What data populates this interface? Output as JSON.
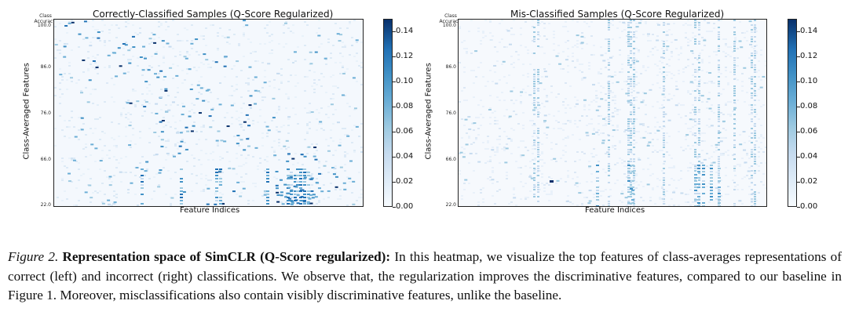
{
  "panels": [
    {
      "title": "Correctly-Classified Samples (Q-Score Regularized)",
      "ylabel": "Class-Averaged Features",
      "xlabel": "Feature Indices",
      "accuracy_label": [
        "Class",
        "Accuracy:"
      ],
      "yticks": [
        "100.0",
        "86.0",
        "76.0",
        "66.0",
        "22.0"
      ],
      "colorbar_ticks": [
        "0.14",
        "0.12",
        "0.10",
        "0.08",
        "0.06",
        "0.04",
        "0.02",
        "0.00"
      ],
      "colorscale": [
        "#f7fbff",
        "#deebf7",
        "#c6dbef",
        "#9ecae1",
        "#6baed6",
        "#4292c6",
        "#2171b5",
        "#08306b"
      ]
    },
    {
      "title": "Mis-Classified Samples (Q-Score Regularized)",
      "ylabel": "Class-Averaged Features",
      "xlabel": "Feature Indices",
      "accuracy_label": [
        "Class",
        "Accuracy:"
      ],
      "yticks": [
        "100.0",
        "86.0",
        "76.0",
        "66.0",
        "22.0"
      ],
      "colorbar_ticks": [
        "0.14",
        "0.12",
        "0.10",
        "0.08",
        "0.06",
        "0.04",
        "0.02",
        "0.00"
      ],
      "colorscale": [
        "#f7fbff",
        "#deebf7",
        "#c6dbef",
        "#9ecae1",
        "#6baed6",
        "#4292c6",
        "#2171b5",
        "#08306b"
      ]
    }
  ],
  "chart_data": [
    {
      "type": "heatmap",
      "title": "Correctly-Classified Samples (Q-Score Regularized)",
      "xlabel": "Feature Indices",
      "ylabel": "Class-Averaged Features",
      "yticks": [
        "100.0",
        "86.0",
        "76.0",
        "66.0",
        "22.0"
      ],
      "colorbar_range": [
        0.0,
        0.14
      ],
      "pattern": "sparse high-activation cells roughly along a diagonal plus denser activations in bottom rows"
    },
    {
      "type": "heatmap",
      "title": "Mis-Classified Samples (Q-Score Regularized)",
      "xlabel": "Feature Indices",
      "ylabel": "Class-Averaged Features",
      "yticks": [
        "100.0",
        "86.0",
        "76.0",
        "66.0",
        "22.0"
      ],
      "colorbar_range": [
        0.0,
        0.14
      ],
      "pattern": "faint diffuse activations with vertical streaks at shared feature indices"
    }
  ],
  "caption": {
    "label": "Figure 2.",
    "bold": "Representation space of SimCLR (Q-Score regularized):",
    "text": "In this heatmap, we visualize the top features of class-averages representations of correct (left) and incorrect (right) classifications. We observe that, the regularization improves the discriminative features, compared to our baseline in Figure 1. Moreover, misclassifications also contain visibly discriminative features, unlike the baseline."
  }
}
